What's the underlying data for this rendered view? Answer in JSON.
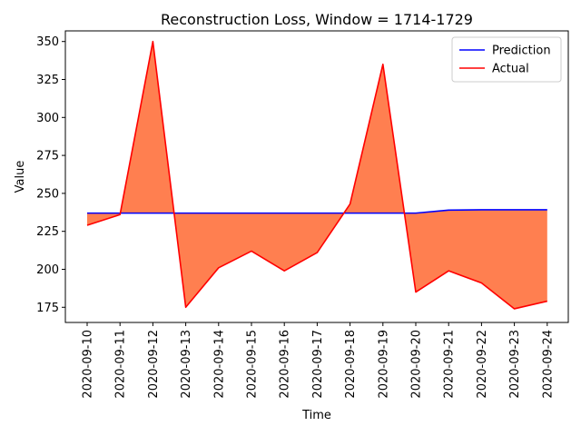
{
  "chart_data": {
    "type": "line",
    "title": "Reconstruction Loss, Window = 1714-1729",
    "xlabel": "Time",
    "ylabel": "Value",
    "ylim": [
      165,
      357
    ],
    "yticks": [
      175,
      200,
      225,
      250,
      275,
      300,
      325,
      350
    ],
    "categories": [
      "2020-09-10",
      "2020-09-11",
      "2020-09-12",
      "2020-09-13",
      "2020-09-14",
      "2020-09-15",
      "2020-09-16",
      "2020-09-17",
      "2020-09-18",
      "2020-09-19",
      "2020-09-20",
      "2020-09-21",
      "2020-09-22",
      "2020-09-23",
      "2020-09-24"
    ],
    "series": [
      {
        "name": "Prediction",
        "color": "#0000ff",
        "values": [
          237,
          237,
          237,
          237,
          237,
          237,
          237,
          237,
          237,
          237,
          237,
          239,
          239.2,
          239.2,
          239.2
        ]
      },
      {
        "name": "Actual",
        "color": "#ff0000",
        "values": [
          229,
          236,
          350,
          175,
          201,
          212,
          199,
          211,
          243,
          335,
          185,
          199,
          191,
          174,
          179
        ]
      }
    ],
    "fill_between": {
      "series": [
        "Prediction",
        "Actual"
      ],
      "color": "#ff7f50"
    },
    "grid": false,
    "legend": "upper right"
  }
}
